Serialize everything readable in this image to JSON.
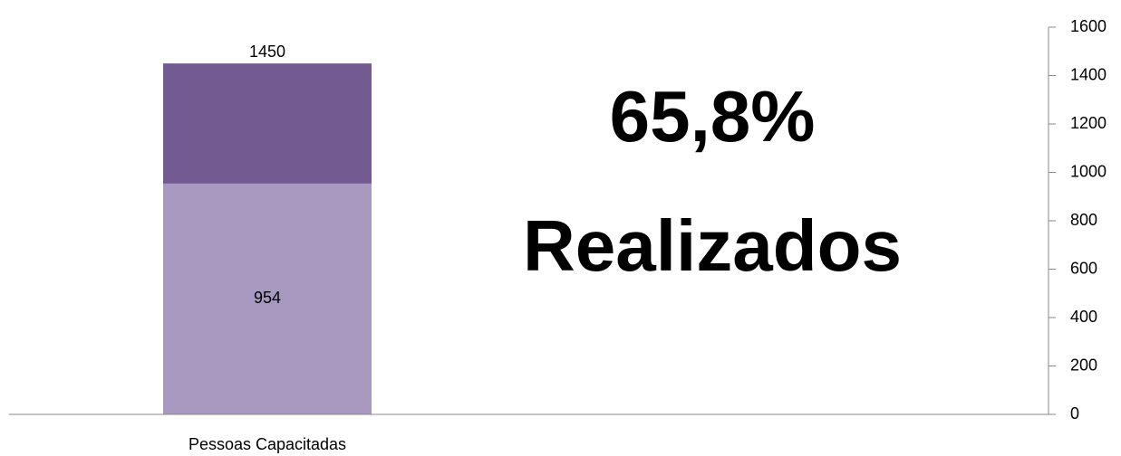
{
  "chart_data": {
    "type": "bar",
    "barmode": "overlay",
    "categories": [
      "Pessoas Capacitadas"
    ],
    "series": [
      {
        "color": "#735a91",
        "values": [
          1450
        ]
      },
      {
        "color": "#a899c1",
        "values": [
          954
        ]
      }
    ],
    "annotations": [
      "65,8%",
      "Realizados"
    ],
    "ylim": [
      0,
      1600
    ],
    "yticks": [
      0,
      200,
      400,
      600,
      800,
      1000,
      1200,
      1400,
      1600
    ],
    "y_axis_side": "right"
  }
}
